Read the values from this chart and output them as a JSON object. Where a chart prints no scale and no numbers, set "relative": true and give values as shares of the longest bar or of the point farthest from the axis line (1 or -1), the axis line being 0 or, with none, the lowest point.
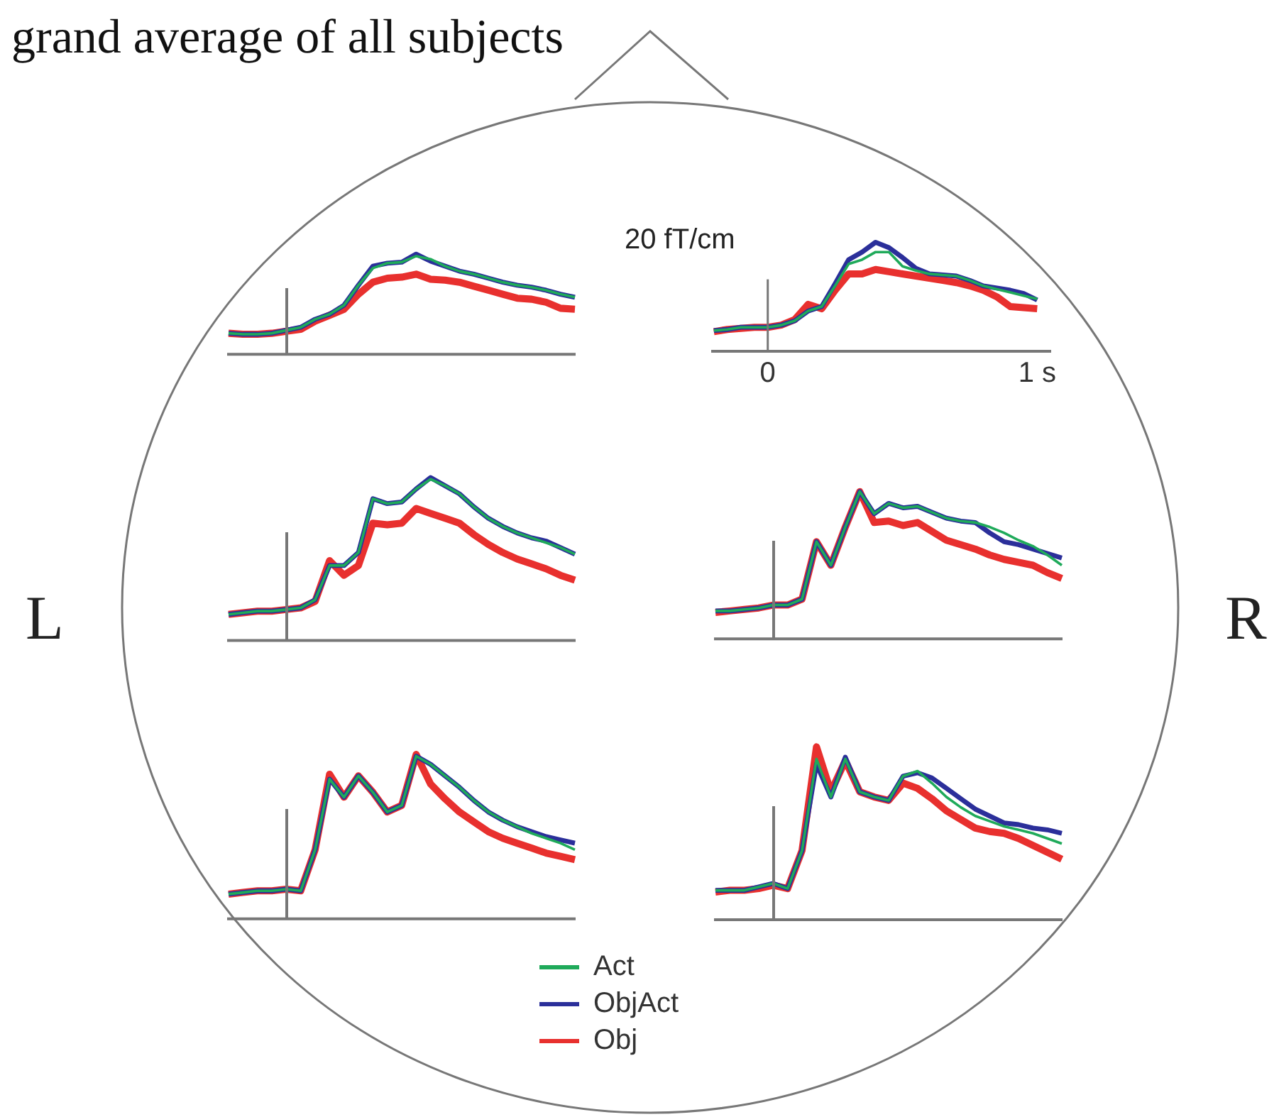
{
  "chart_data": [
    {
      "type": "line",
      "title": "grand average of all subjects",
      "relative": true,
      "marker": "none",
      "categories": [
        null,
        null,
        null,
        null,
        null,
        null,
        null,
        null,
        null,
        null,
        null,
        null,
        null,
        null,
        null,
        null,
        null,
        null,
        null,
        null,
        null,
        null,
        null,
        null,
        null
      ],
      "series": [
        {
          "color": "#1faa5a",
          "values": [
            0.21,
            0.2,
            0.2,
            0.21,
            0.24,
            0.27,
            0.35,
            0.4,
            0.49,
            0.69,
            0.86,
            0.91,
            0.92,
            0.98,
            0.95,
            0.88,
            0.83,
            0.8,
            0.76,
            0.72,
            0.69,
            0.67,
            0.64,
            0.6,
            0.57
          ]
        },
        {
          "color": "#2b2f9a",
          "values": [
            0.21,
            0.2,
            0.2,
            0.21,
            0.24,
            0.27,
            0.35,
            0.4,
            0.49,
            0.69,
            0.88,
            0.91,
            0.92,
            1.0,
            0.93,
            0.88,
            0.83,
            0.8,
            0.76,
            0.72,
            0.69,
            0.67,
            0.64,
            0.6,
            0.57
          ]
        },
        {
          "color": "#e8302e",
          "values": [
            0.21,
            0.2,
            0.2,
            0.21,
            0.23,
            0.25,
            0.33,
            0.39,
            0.45,
            0.6,
            0.72,
            0.76,
            0.77,
            0.8,
            0.75,
            0.74,
            0.72,
            0.68,
            0.64,
            0.6,
            0.56,
            0.55,
            0.52,
            0.46,
            0.45
          ]
        }
      ]
    },
    {
      "type": "line",
      "relative": true,
      "marker": "none",
      "xlim": [
        -0.21,
        1.05
      ],
      "xticks": [
        0,
        {
          "value": 1,
          "label": "1 s"
        }
      ],
      "ref_lines": [
        {
          "axis": "x",
          "value": 0
        }
      ],
      "annotations": [
        "20 fT/cm"
      ],
      "x": [
        -0.2,
        -0.15,
        -0.1,
        -0.05,
        0,
        0.05,
        0.1,
        0.15,
        0.2,
        0.25,
        0.3,
        0.35,
        0.4,
        0.45,
        0.5,
        0.55,
        0.6,
        0.65,
        0.7,
        0.75,
        0.8,
        0.85,
        0.9,
        0.95,
        1.0
      ],
      "series": [
        {
          "color": "#1faa5a",
          "values": [
            0.19,
            0.2,
            0.22,
            0.22,
            0.22,
            0.24,
            0.28,
            0.37,
            0.41,
            0.6,
            0.8,
            0.84,
            0.91,
            0.91,
            0.78,
            0.74,
            0.71,
            0.7,
            0.69,
            0.65,
            0.6,
            0.57,
            0.54,
            0.51,
            0.48
          ]
        },
        {
          "color": "#2b2f9a",
          "values": [
            0.19,
            0.2,
            0.22,
            0.22,
            0.22,
            0.24,
            0.28,
            0.37,
            0.41,
            0.62,
            0.84,
            0.91,
            1.0,
            0.95,
            0.86,
            0.76,
            0.71,
            0.7,
            0.69,
            0.65,
            0.6,
            0.58,
            0.56,
            0.53,
            0.47
          ]
        },
        {
          "color": "#e8302e",
          "values": [
            0.18,
            0.2,
            0.21,
            0.22,
            0.22,
            0.24,
            0.29,
            0.43,
            0.39,
            0.56,
            0.71,
            0.71,
            0.75,
            0.73,
            0.71,
            0.69,
            0.67,
            0.65,
            0.63,
            0.6,
            0.56,
            0.5,
            0.41,
            0.4,
            0.39
          ]
        }
      ]
    },
    {
      "type": "line",
      "relative": true,
      "marker": "none",
      "annotations": [
        "L"
      ],
      "categories": [
        null,
        null,
        null,
        null,
        null,
        null,
        null,
        null,
        null,
        null,
        null,
        null,
        null,
        null,
        null,
        null,
        null,
        null,
        null,
        null,
        null,
        null,
        null,
        null,
        null
      ],
      "series": [
        {
          "color": "#1faa5a",
          "values": [
            0.16,
            0.17,
            0.18,
            0.18,
            0.19,
            0.2,
            0.25,
            0.46,
            0.46,
            0.54,
            0.87,
            0.84,
            0.85,
            0.93,
            0.99,
            0.95,
            0.9,
            0.82,
            0.75,
            0.7,
            0.66,
            0.63,
            0.6,
            0.57,
            0.53
          ]
        },
        {
          "color": "#2b2f9a",
          "values": [
            0.16,
            0.17,
            0.18,
            0.18,
            0.19,
            0.2,
            0.25,
            0.46,
            0.46,
            0.54,
            0.87,
            0.84,
            0.85,
            0.93,
            1.0,
            0.95,
            0.9,
            0.82,
            0.75,
            0.7,
            0.66,
            0.63,
            0.61,
            0.57,
            0.53
          ]
        },
        {
          "color": "#e8302e",
          "values": [
            0.16,
            0.17,
            0.18,
            0.18,
            0.19,
            0.2,
            0.24,
            0.49,
            0.4,
            0.46,
            0.72,
            0.71,
            0.72,
            0.81,
            0.78,
            0.75,
            0.72,
            0.65,
            0.59,
            0.54,
            0.5,
            0.47,
            0.44,
            0.4,
            0.37
          ]
        }
      ]
    },
    {
      "type": "line",
      "relative": true,
      "marker": "none",
      "annotations": [
        "R"
      ],
      "categories": [
        null,
        null,
        null,
        null,
        null,
        null,
        null,
        null,
        null,
        null,
        null,
        null,
        null,
        null,
        null,
        null,
        null,
        null,
        null,
        null,
        null,
        null,
        null,
        null,
        null
      ],
      "series": [
        {
          "color": "#1faa5a",
          "values": [
            0.19,
            0.19,
            0.2,
            0.21,
            0.23,
            0.23,
            0.27,
            0.66,
            0.5,
            0.76,
            1.0,
            0.85,
            0.92,
            0.89,
            0.9,
            0.86,
            0.82,
            0.8,
            0.79,
            0.76,
            0.72,
            0.67,
            0.63,
            0.57,
            0.5
          ]
        },
        {
          "color": "#2b2f9a",
          "values": [
            0.19,
            0.19,
            0.2,
            0.21,
            0.23,
            0.23,
            0.27,
            0.66,
            0.5,
            0.76,
            1.0,
            0.85,
            0.92,
            0.89,
            0.9,
            0.86,
            0.82,
            0.8,
            0.79,
            0.72,
            0.66,
            0.64,
            0.61,
            0.58,
            0.55
          ]
        },
        {
          "color": "#e8302e",
          "values": [
            0.18,
            0.19,
            0.2,
            0.21,
            0.23,
            0.23,
            0.27,
            0.66,
            0.5,
            0.76,
            1.0,
            0.79,
            0.8,
            0.77,
            0.79,
            0.73,
            0.67,
            0.64,
            0.61,
            0.57,
            0.54,
            0.52,
            0.5,
            0.45,
            0.41
          ]
        }
      ]
    },
    {
      "type": "line",
      "relative": true,
      "marker": "none",
      "categories": [
        null,
        null,
        null,
        null,
        null,
        null,
        null,
        null,
        null,
        null,
        null,
        null,
        null,
        null,
        null,
        null,
        null,
        null,
        null,
        null,
        null,
        null,
        null,
        null,
        null
      ],
      "series": [
        {
          "color": "#1faa5a",
          "values": [
            0.15,
            0.16,
            0.17,
            0.17,
            0.18,
            0.17,
            0.42,
            0.85,
            0.74,
            0.87,
            0.77,
            0.65,
            0.69,
            0.99,
            0.94,
            0.87,
            0.8,
            0.72,
            0.65,
            0.6,
            0.56,
            0.52,
            0.49,
            0.46,
            0.42
          ]
        },
        {
          "color": "#2b2f9a",
          "values": [
            0.15,
            0.16,
            0.17,
            0.17,
            0.18,
            0.17,
            0.42,
            0.85,
            0.74,
            0.87,
            0.77,
            0.65,
            0.69,
            0.99,
            0.94,
            0.87,
            0.8,
            0.72,
            0.65,
            0.6,
            0.56,
            0.53,
            0.5,
            0.48,
            0.46
          ]
        },
        {
          "color": "#e8302e",
          "values": [
            0.15,
            0.16,
            0.17,
            0.17,
            0.18,
            0.17,
            0.42,
            0.88,
            0.74,
            0.87,
            0.77,
            0.65,
            0.69,
            1.0,
            0.82,
            0.73,
            0.65,
            0.59,
            0.53,
            0.49,
            0.46,
            0.43,
            0.4,
            0.38,
            0.36
          ]
        }
      ]
    },
    {
      "type": "line",
      "relative": true,
      "marker": "none",
      "legend": "bottom",
      "categories": [
        null,
        null,
        null,
        null,
        null,
        null,
        null,
        null,
        null,
        null,
        null,
        null,
        null,
        null,
        null,
        null,
        null,
        null,
        null,
        null,
        null,
        null,
        null,
        null,
        null
      ],
      "series": [
        {
          "name": "Act",
          "color": "#1faa5a",
          "values": [
            0.17,
            0.17,
            0.17,
            0.19,
            0.21,
            0.18,
            0.4,
            0.93,
            0.71,
            0.93,
            0.74,
            0.71,
            0.69,
            0.83,
            0.86,
            0.79,
            0.71,
            0.65,
            0.6,
            0.57,
            0.54,
            0.52,
            0.5,
            0.47,
            0.44
          ]
        },
        {
          "name": "ObjAct",
          "color": "#2b2f9a",
          "values": [
            0.17,
            0.17,
            0.17,
            0.19,
            0.21,
            0.18,
            0.4,
            0.9,
            0.71,
            0.94,
            0.74,
            0.71,
            0.69,
            0.83,
            0.85,
            0.82,
            0.76,
            0.7,
            0.64,
            0.6,
            0.56,
            0.55,
            0.53,
            0.52,
            0.5
          ]
        },
        {
          "name": "Obj",
          "color": "#e8302e",
          "values": [
            0.16,
            0.17,
            0.17,
            0.18,
            0.2,
            0.18,
            0.4,
            1.0,
            0.74,
            0.92,
            0.74,
            0.71,
            0.69,
            0.79,
            0.76,
            0.7,
            0.63,
            0.58,
            0.53,
            0.51,
            0.5,
            0.47,
            0.43,
            0.39,
            0.35
          ]
        }
      ]
    }
  ]
}
